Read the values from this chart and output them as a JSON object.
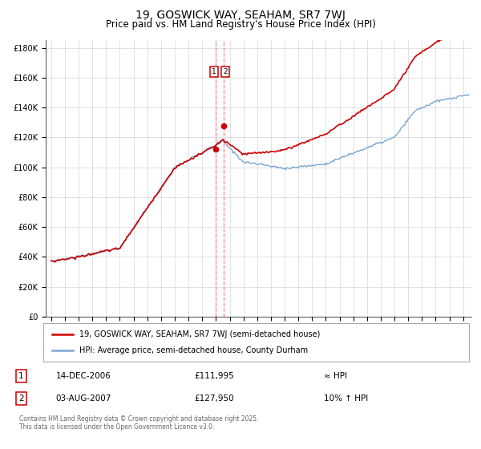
{
  "title": "19, GOSWICK WAY, SEAHAM, SR7 7WJ",
  "subtitle": "Price paid vs. HM Land Registry's House Price Index (HPI)",
  "ylim": [
    0,
    185000
  ],
  "yticks": [
    0,
    20000,
    40000,
    60000,
    80000,
    100000,
    120000,
    140000,
    160000,
    180000
  ],
  "ytick_labels": [
    "£0",
    "£20K",
    "£40K",
    "£60K",
    "£80K",
    "£100K",
    "£120K",
    "£140K",
    "£160K",
    "£180K"
  ],
  "hpi_color": "#7ba7d4",
  "price_color": "#cc0000",
  "dot_color": "#cc0000",
  "vline_color": "#ff8888",
  "purchase1_date": 2006.96,
  "purchase1_price": 111995,
  "purchase2_date": 2007.58,
  "purchase2_price": 127950,
  "legend_line1": "19, GOSWICK WAY, SEAHAM, SR7 7WJ (semi-detached house)",
  "legend_line2": "HPI: Average price, semi-detached house, County Durham",
  "table_row1": [
    "1",
    "14-DEC-2006",
    "£111,995",
    "≈ HPI"
  ],
  "table_row2": [
    "2",
    "03-AUG-2007",
    "£127,950",
    "10% ↑ HPI"
  ],
  "footnote": "Contains HM Land Registry data © Crown copyright and database right 2025.\nThis data is licensed under the Open Government Licence v3.0.",
  "title_fontsize": 10,
  "subtitle_fontsize": 8.5,
  "tick_fontsize": 7,
  "background_color": "#ffffff",
  "grid_color": "#cccccc",
  "xlim_left": 1994.6,
  "xlim_right": 2025.6
}
